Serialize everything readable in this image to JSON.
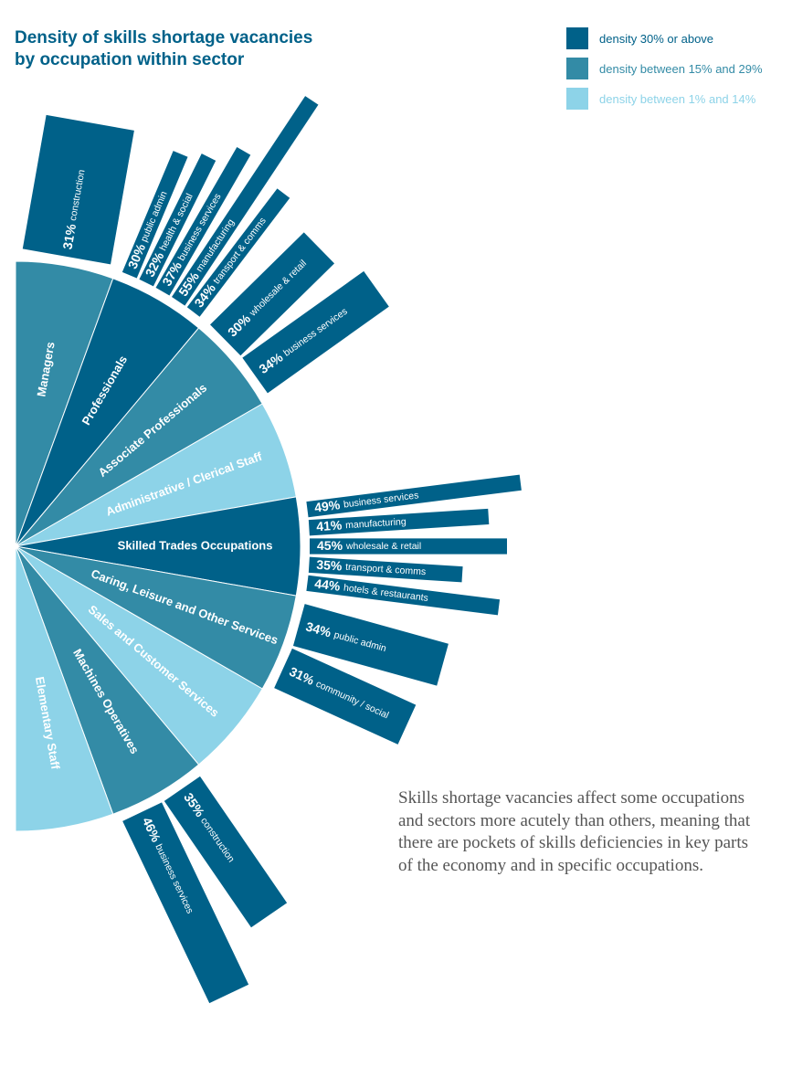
{
  "header": {
    "title_line1": "Density of skills shortage vacancies",
    "title_line2": "by occupation within sector"
  },
  "legend": [
    {
      "label": "density 30% or above",
      "color": "#006189"
    },
    {
      "label": "density between 15% and 29%",
      "color": "#338ba6"
    },
    {
      "label": "density between 1% and 14%",
      "color": "#8dd3e8"
    }
  ],
  "caption": "Skills shortage vacancies affect some occupations and sectors more acutely than others, meaning that there are pockets of skills deficiencies in key parts of the economy and in specific occupations.",
  "chart_data": {
    "type": "bar",
    "occupations": [
      {
        "name": "Managers",
        "level": 2,
        "sectors": [
          {
            "pct": "31%",
            "value": 31,
            "sector": "construction"
          }
        ]
      },
      {
        "name": "Professionals",
        "level": 1,
        "sectors": [
          {
            "pct": "30%",
            "value": 30,
            "sector": "public admin"
          },
          {
            "pct": "32%",
            "value": 32,
            "sector": "health & social"
          },
          {
            "pct": "37%",
            "value": 37,
            "sector": "business services"
          },
          {
            "pct": "55%",
            "value": 55,
            "sector": "manufacturing"
          },
          {
            "pct": "34%",
            "value": 34,
            "sector": "transport & comms"
          }
        ]
      },
      {
        "name": "Associate Professionals",
        "level": 2,
        "sectors": [
          {
            "pct": "30%",
            "value": 30,
            "sector": "wholesale & retail"
          },
          {
            "pct": "34%",
            "value": 34,
            "sector": "business services"
          }
        ]
      },
      {
        "name": "Administrative / Clerical Staff",
        "level": 3,
        "sectors": []
      },
      {
        "name": "Skilled Trades Occupations",
        "level": 1,
        "sectors": [
          {
            "pct": "49%",
            "value": 49,
            "sector": "business services"
          },
          {
            "pct": "41%",
            "value": 41,
            "sector": "manufacturing"
          },
          {
            "pct": "45%",
            "value": 45,
            "sector": "wholesale & retail"
          },
          {
            "pct": "35%",
            "value": 35,
            "sector": "transport & comms"
          },
          {
            "pct": "44%",
            "value": 44,
            "sector": "hotels & restaurants"
          }
        ]
      },
      {
        "name": "Caring, Leisure and Other Services",
        "level": 2,
        "sectors": [
          {
            "pct": "34%",
            "value": 34,
            "sector": "public admin"
          },
          {
            "pct": "31%",
            "value": 31,
            "sector": "community / social"
          }
        ]
      },
      {
        "name": "Sales and Customer Services",
        "level": 3,
        "sectors": []
      },
      {
        "name": "Machines Operatives",
        "level": 2,
        "sectors": [
          {
            "pct": "35%",
            "value": 35,
            "sector": "construction"
          },
          {
            "pct": "46%",
            "value": 46,
            "sector": "business services"
          }
        ]
      },
      {
        "name": "Elementary Staff",
        "level": 3,
        "sectors": []
      }
    ]
  }
}
